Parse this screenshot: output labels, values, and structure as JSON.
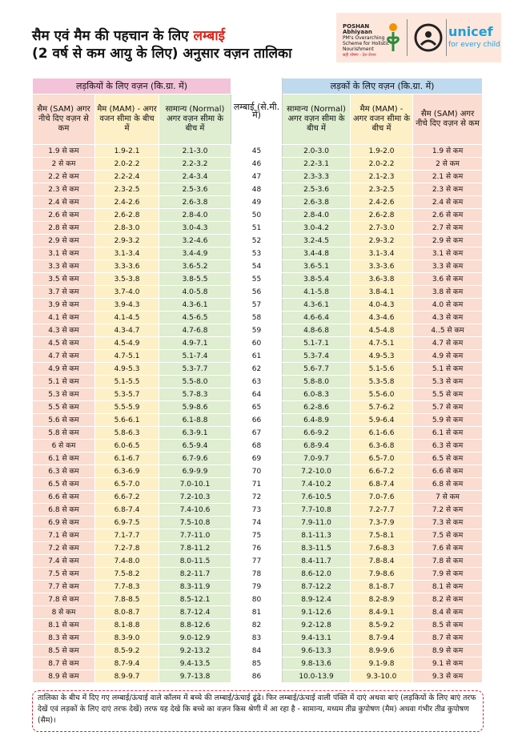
{
  "header": {
    "title_line1": "सैम एवं मैम की पहचान के लिए",
    "title_highlight": "लम्बाई",
    "title_line2": "(2 वर्ष से कम आयु के लिए) अनुसार वज़न तालिका",
    "logo_poshan": "POSHAN Abhiyaan",
    "logo_poshan_sub": "PM's Overarching Scheme for Holistic Nourishment",
    "logo_poshan_tag": "सही पोषण - देश रोशन",
    "logo_unicef": "unicef",
    "logo_unicef_tag": "for every child"
  },
  "table": {
    "girls_header": "लड़कियों के लिए वज़न (कि.ग्रा. में)",
    "boys_header": "लड़कों के लिए वज़न (कि.ग्रा. में)",
    "columns": [
      "सैम (SAM) अगर नीचे दिए वज़न से कम",
      "मैम (MAM) - अगर वजन सीमा के बीच में",
      "सामान्य (Normal) अगर वज़न सीमा के बीच में",
      "लम्बाई (से.मी. में)",
      "सामान्य (Normal) अगर वज़न सीमा के बीच में",
      "मैम (MAM) - अगर वजन सीमा के बीच में",
      "सैम (SAM) अगर नीचे दिए वज़न से कम"
    ],
    "rows": [
      [
        "1.9 से कम",
        "1.9-2.1",
        "2.1-3.0",
        45,
        "2.0-3.0",
        "1.9-2.0",
        "1.9 से कम"
      ],
      [
        "2 से कम",
        "2.0-2.2",
        "2.2-3.2",
        46,
        "2.2-3.1",
        "2.0-2.2",
        "2 से कम"
      ],
      [
        "2.2 से कम",
        "2.2-2.4",
        "2.4-3.4",
        47,
        "2.3-3.3",
        "2.1-2.3",
        "2.1 से कम"
      ],
      [
        "2.3 से कम",
        "2.3-2.5",
        "2.5-3.6",
        48,
        "2.5-3.6",
        "2.3-2.5",
        "2.3 से कम"
      ],
      [
        "2.4 से कम",
        "2.4-2.6",
        "2.6-3.8",
        49,
        "2.6-3.8",
        "2.4-2.6",
        "2.4 से कम"
      ],
      [
        "2.6 से कम",
        "2.6-2.8",
        "2.8-4.0",
        50,
        "2.8-4.0",
        "2.6-2.8",
        "2.6 से कम"
      ],
      [
        "2.8 से कम",
        "2.8-3.0",
        "3.0-4.3",
        51,
        "3.0-4.2",
        "2.7-3.0",
        "2.7 से कम"
      ],
      [
        "2.9 से कम",
        "2.9-3.2",
        "3.2-4.6",
        52,
        "3.2-4.5",
        "2.9-3.2",
        "2.9 से कम"
      ],
      [
        "3.1 से कम",
        "3.1-3.4",
        "3.4-4.9",
        53,
        "3.4-4.8",
        "3.1-3.4",
        "3.1 से कम"
      ],
      [
        "3.3 से कम",
        "3.3-3.6",
        "3.6-5.2",
        54,
        "3.6-5.1",
        "3.3-3.6",
        "3.3 से कम"
      ],
      [
        "3.5 से कम",
        "3.5-3.8",
        "3.8-5.5",
        55,
        "3.8-5.4",
        "3.6-3.8",
        "3.6 से कम"
      ],
      [
        "3.7 से कम",
        "3.7-4.0",
        "4.0-5.8",
        56,
        "4.1-5.8",
        "3.8-4.1",
        "3.8 से कम"
      ],
      [
        "3.9 से कम",
        "3.9-4.3",
        "4.3-6.1",
        57,
        "4.3-6.1",
        "4.0-4.3",
        "4.0 से कम"
      ],
      [
        "4.1 से कम",
        "4.1-4.5",
        "4.5-6.5",
        58,
        "4.6-6.4",
        "4.3-4.6",
        "4.3 से कम"
      ],
      [
        "4.3 से कम",
        "4.3-4.7",
        "4.7-6.8",
        59,
        "4.8-6.8",
        "4.5-4.8",
        "4..5 से कम"
      ],
      [
        "4.5 से कम",
        "4.5-4.9",
        "4.9-7.1",
        60,
        "5.1-7.1",
        "4.7-5.1",
        "4.7 से कम"
      ],
      [
        "4.7 से कम",
        "4.7-5.1",
        "5.1-7.4",
        61,
        "5.3-7.4",
        "4.9-5.3",
        "4.9 से कम"
      ],
      [
        "4.9 से कम",
        "4.9-5.3",
        "5.3-7.7",
        62,
        "5.6-7.7",
        "5.1-5.6",
        "5.1 से कम"
      ],
      [
        "5.1 से कम",
        "5.1-5.5",
        "5.5-8.0",
        63,
        "5.8-8.0",
        "5.3-5.8",
        "5.3 से कम"
      ],
      [
        "5.3 से कम",
        "5.3-5.7",
        "5.7-8.3",
        64,
        "6.0-8.3",
        "5.5-6.0",
        "5.5 से कम"
      ],
      [
        "5.5 से कम",
        "5.5-5.9",
        "5.9-8.6",
        65,
        "6.2-8.6",
        "5.7-6.2",
        "5.7 से कम"
      ],
      [
        "5.6 से कम",
        "5.6-6.1",
        "6.1-8.8",
        66,
        "6.4-8.9",
        "5.9-6.4",
        "5.9 से कम"
      ],
      [
        "5.8 से कम",
        "5.8-6.3",
        "6.3-9.1",
        67,
        "6.6-9.2",
        "6.1-6.6",
        "6.1 से कम"
      ],
      [
        "6 से कम",
        "6.0-6.5",
        "6.5-9.4",
        68,
        "6.8-9.4",
        "6.3-6.8",
        "6.3 से कम"
      ],
      [
        "6.1 से कम",
        "6.1-6.7",
        "6.7-9.6",
        69,
        "7.0-9.7",
        "6.5-7.0",
        "6.5 से कम"
      ],
      [
        "6.3 से कम",
        "6.3-6.9",
        "6.9-9.9",
        70,
        "7.2-10.0",
        "6.6-7.2",
        "6.6 से कम"
      ],
      [
        "6.5 से कम",
        "6.5-7.0",
        "7.0-10.1",
        71,
        "7.4-10.2",
        "6.8-7.4",
        "6.8 से कम"
      ],
      [
        "6.6 से कम",
        "6.6-7.2",
        "7.2-10.3",
        72,
        "7.6-10.5",
        "7.0-7.6",
        "7 से कम"
      ],
      [
        "6.8 से कम",
        "6.8-7.4",
        "7.4-10.6",
        73,
        "7.7-10.8",
        "7.2-7.7",
        "7.2 से कम"
      ],
      [
        "6.9 से कम",
        "6.9-7.5",
        "7.5-10.8",
        74,
        "7.9-11.0",
        "7.3-7.9",
        "7.3 से कम"
      ],
      [
        "7.1 से कम",
        "7.1-7.7",
        "7.7-11.0",
        75,
        "8.1-11.3",
        "7.5-8.1",
        "7.5 से कम"
      ],
      [
        "7.2 से कम",
        "7.2-7.8",
        "7.8-11.2",
        76,
        "8.3-11.5",
        "7.6-8.3",
        "7.6 से कम"
      ],
      [
        "7.4 से कम",
        "7.4-8.0",
        "8.0-11.5",
        77,
        "8.4-11.7",
        "7.8-8.4",
        "7.8 से कम"
      ],
      [
        "7.5 से कम",
        "7.5-8.2",
        "8.2-11.7",
        78,
        "8.6-12.0",
        "7.9-8.6",
        "7.9 से कम"
      ],
      [
        "7.7 से कम",
        "7.7-8.3",
        "8.3-11.9",
        79,
        "8.7-12.2",
        "8.1-8.7",
        "8.1 से कम"
      ],
      [
        "7.8 से कम",
        "7.8-8.5",
        "8.5-12.1",
        80,
        "8.9-12.4",
        "8.2-8.9",
        "8.2 से कम"
      ],
      [
        "8 से कम",
        "8.0-8.7",
        "8.7-12.4",
        81,
        "9.1-12.6",
        "8.4-9.1",
        "8.4 से कम"
      ],
      [
        "8.1 से कम",
        "8.1-8.8",
        "8.8-12.6",
        82,
        "9.2-12.8",
        "8.5-9.2",
        "8.5 से कम"
      ],
      [
        "8.3 से कम",
        "8.3-9.0",
        "9.0-12.9",
        83,
        "9.4-13.1",
        "8.7-9.4",
        "8.7 से कम"
      ],
      [
        "8.5 से कम",
        "8.5-9.2",
        "9.2-13.2",
        84,
        "9.6-13.3",
        "8.9-9.6",
        "8.9 से कम"
      ],
      [
        "8.7 से कम",
        "8.7-9.4",
        "9.4-13.5",
        85,
        "9.8-13.6",
        "9.1-9.8",
        "9.1 से कम"
      ],
      [
        "8.9 से कम",
        "8.9-9.7",
        "9.7-13.8",
        86,
        "10.0-13.9",
        "9.3-10.0",
        "9.3 से कम"
      ]
    ]
  },
  "footer": {
    "note": "तालिका के बीच में दिए गए लम्बाई/ऊंचाई वाले कॉलम में बच्चे की लम्बाई/ऊंचाई ढूंढे। फिर लम्बाई/ऊंचाई वाली पंक्ति में दाएं अथवा बाएं (लड़कियों के लिए बाएं तरफ देखें एवं लड़कों के लिए दाएं तरफ देखें) तरफ यह देखे कि बच्चे का वज़न किस श्रेणी में आ रहा है - सामान्य, मध्यम तीव्र कुपोषण (मैम) अथवा गंभीर तीव्र कुपोषण (सैम)।"
  }
}
